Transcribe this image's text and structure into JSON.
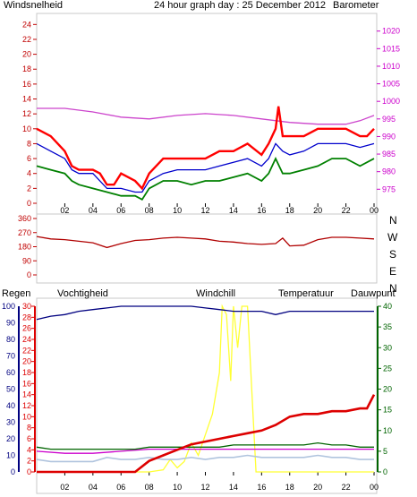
{
  "header": {
    "title": "24 hour graph day : 25 December 2012",
    "left_label": "Windsnelheid",
    "right_label": "Barometer"
  },
  "bottom_header": {
    "regen": "Regen",
    "vochtigheid": "Vochtigheid",
    "windchill": "Windchill",
    "temperatuur": "Temperatuur",
    "dauwpunt": "Dauwpunt"
  },
  "compass": [
    "N",
    "W",
    "S",
    "E",
    "N"
  ],
  "colors": {
    "frame": "#cfcfcf",
    "wind_axis": "#c00000",
    "baro_axis": "#cc00cc",
    "gust": "#ff0000",
    "avg_wind": "#0000cc",
    "wind_min": "#008000",
    "barometer": "#cc44cc",
    "direction": "#b00000",
    "regen": "#dd0000",
    "vochtigheid": "#000080",
    "windchill": "#b0c4de",
    "temperatuur": "#006400",
    "dauwpunt": "#cc00cc",
    "solar": "#ffff33"
  },
  "chart_data": [
    {
      "type": "line",
      "name": "wind_barometer",
      "x_ticks": [
        "02",
        "04",
        "06",
        "08",
        "10",
        "12",
        "14",
        "16",
        "18",
        "20",
        "22",
        "00"
      ],
      "y_left_ticks": [
        "0",
        "2",
        "4",
        "6",
        "8",
        "10",
        "12",
        "14",
        "16",
        "18",
        "20",
        "22",
        "24"
      ],
      "y_left_range": [
        0,
        25
      ],
      "y_right_ticks": [
        "975",
        "980",
        "985",
        "990",
        "995",
        "1000",
        "1005",
        "1010",
        "1015",
        "1020"
      ],
      "y_right_range": [
        971,
        1024
      ],
      "x_range": [
        0,
        24
      ],
      "series": [
        {
          "key": "gust",
          "x": [
            0,
            1,
            2,
            2.5,
            3,
            4,
            4.5,
            5,
            5.5,
            6,
            7,
            7.5,
            8,
            9,
            10,
            11,
            12,
            13,
            14,
            15,
            16,
            16.5,
            17,
            17.2,
            17.5,
            18,
            19,
            20,
            21,
            22,
            23,
            23.5,
            24
          ],
          "y": [
            10,
            9,
            7,
            5,
            4.5,
            4.5,
            4,
            2.5,
            2.5,
            4,
            3,
            2,
            4,
            6,
            6,
            6,
            6,
            7,
            7,
            8,
            6.5,
            8,
            10,
            13,
            9,
            9,
            9,
            10,
            10,
            10,
            9,
            9,
            10
          ]
        },
        {
          "key": "avg_wind",
          "x": [
            0,
            1,
            2,
            2.5,
            3,
            4,
            5,
            6,
            7,
            7.5,
            8,
            9,
            10,
            11,
            12,
            13,
            14,
            15,
            16,
            16.5,
            17,
            17.5,
            18,
            19,
            20,
            21,
            22,
            23,
            24
          ],
          "y": [
            8,
            7,
            6,
            4.5,
            4,
            4,
            2,
            2,
            1.5,
            1.5,
            3,
            4,
            4.5,
            4.5,
            4.5,
            5,
            5.5,
            6,
            5,
            6,
            8,
            7,
            6.5,
            7,
            8,
            8,
            8,
            7.5,
            8
          ]
        },
        {
          "key": "wind_min",
          "x": [
            0,
            1,
            2,
            2.5,
            3,
            4,
            5,
            6,
            7,
            7.5,
            8,
            9,
            10,
            11,
            12,
            13,
            14,
            15,
            16,
            16.5,
            17,
            17.5,
            18,
            19,
            20,
            21,
            22,
            23,
            24
          ],
          "y": [
            5,
            4.5,
            4,
            3,
            2.5,
            2,
            1.5,
            1,
            1,
            0.5,
            2,
            3,
            3,
            2.5,
            3,
            3,
            3.5,
            4,
            3,
            4,
            6,
            4,
            4,
            4.5,
            5,
            6,
            6,
            5,
            6
          ]
        },
        {
          "key": "barometer",
          "x": [
            0,
            2,
            4,
            6,
            8,
            10,
            12,
            14,
            16,
            18,
            20,
            22,
            23,
            24
          ],
          "y": [
            998,
            998,
            997,
            995.5,
            995,
            996,
            996.5,
            996,
            995,
            994,
            993.5,
            993.5,
            994.5,
            996
          ]
        }
      ]
    },
    {
      "type": "line",
      "name": "wind_direction",
      "x_ticks": [
        "02",
        "04",
        "06",
        "08",
        "10",
        "12",
        "14",
        "16",
        "18",
        "20",
        "22",
        "00"
      ],
      "y_ticks": [
        "0",
        "90",
        "180",
        "270",
        "360"
      ],
      "y_range": [
        0,
        360
      ],
      "x_range": [
        0,
        24
      ],
      "series": [
        {
          "key": "direction",
          "x": [
            0,
            1,
            2,
            3,
            4,
            5,
            6,
            7,
            8,
            9,
            10,
            11,
            12,
            13,
            14,
            15,
            16,
            17,
            17.5,
            18,
            19,
            20,
            21,
            22,
            23,
            24
          ],
          "y": [
            245,
            230,
            225,
            215,
            205,
            175,
            200,
            220,
            225,
            235,
            240,
            235,
            230,
            215,
            210,
            200,
            195,
            200,
            235,
            185,
            190,
            225,
            240,
            240,
            235,
            230
          ]
        }
      ]
    },
    {
      "type": "line",
      "name": "rain_humidity_temperature",
      "x_ticks": [
        "02",
        "04",
        "06",
        "08",
        "10",
        "12",
        "14",
        "16",
        "18",
        "20",
        "22",
        "00"
      ],
      "y_left_ticks": [
        "0",
        "2",
        "4",
        "6",
        "8",
        "10",
        "12",
        "14",
        "16",
        "18",
        "20",
        "22",
        "24",
        "26",
        "28",
        "30"
      ],
      "y_left_range": [
        0,
        30
      ],
      "y_humidity_ticks": [
        "0",
        "10",
        "20",
        "30",
        "40",
        "50",
        "60",
        "70",
        "80",
        "90",
        "100"
      ],
      "y_humidity_range": [
        0,
        100
      ],
      "y_right_ticks": [
        "0",
        "5",
        "10",
        "15",
        "20",
        "25",
        "30",
        "35",
        "40"
      ],
      "y_right_range": [
        0,
        40
      ],
      "x_range": [
        0,
        24
      ],
      "series": [
        {
          "key": "vochtigheid",
          "x": [
            0,
            1,
            2,
            3,
            4,
            5,
            6,
            7,
            8,
            9,
            10,
            11,
            12,
            13,
            14,
            15,
            16,
            17,
            18,
            19,
            20,
            21,
            22,
            23,
            24
          ],
          "y": [
            92,
            94,
            95,
            97,
            98,
            99,
            100,
            100,
            100,
            100,
            100,
            100,
            99,
            98,
            97,
            97,
            97,
            95,
            97,
            97,
            97,
            97,
            97,
            97,
            97
          ]
        },
        {
          "key": "regen",
          "x": [
            0,
            7,
            8,
            9,
            10,
            11,
            12,
            13,
            14,
            15,
            16,
            17,
            18,
            19,
            20,
            21,
            22,
            23,
            23.5,
            24
          ],
          "y": [
            0,
            0,
            2,
            3,
            4,
            5,
            5.5,
            6,
            6.5,
            7,
            7.5,
            8.5,
            10,
            10.5,
            10.5,
            11,
            11,
            11.5,
            11.5,
            14
          ]
        },
        {
          "key": "temperatuur",
          "x": [
            0,
            1,
            2,
            3,
            4,
            5,
            6,
            7,
            8,
            9,
            10,
            11,
            12,
            13,
            14,
            15,
            16,
            17,
            18,
            19,
            20,
            21,
            22,
            23,
            24
          ],
          "y": [
            6,
            5.5,
            5.5,
            5.5,
            5.5,
            5.5,
            5.5,
            5.5,
            6,
            6,
            6,
            6,
            6,
            6,
            6.5,
            6.5,
            6.5,
            6.5,
            6.5,
            6.5,
            7,
            6.5,
            6.5,
            6,
            6
          ]
        },
        {
          "key": "dauwpunt",
          "x": [
            0,
            2,
            4,
            6,
            8,
            10,
            12,
            14,
            16,
            18,
            20,
            22,
            24
          ],
          "y": [
            5,
            4.5,
            4.5,
            5,
            5.5,
            5.5,
            5.5,
            5.5,
            5.5,
            5.5,
            5.5,
            5.5,
            5.5
          ]
        },
        {
          "key": "windchill",
          "x": [
            0,
            1,
            2,
            3,
            4,
            5,
            6,
            7,
            8,
            9,
            10,
            11,
            12,
            13,
            14,
            15,
            16,
            17,
            18,
            19,
            20,
            21,
            22,
            23,
            24
          ],
          "y": [
            3,
            2.5,
            2.5,
            2.5,
            2.5,
            3.5,
            3,
            3,
            3.5,
            3,
            3,
            3.5,
            3,
            3.5,
            3.5,
            4,
            3.5,
            3.5,
            3.5,
            3.5,
            4,
            3.5,
            3.5,
            3,
            3
          ]
        },
        {
          "key": "solar",
          "x": [
            0,
            7,
            8,
            9,
            9.5,
            10,
            10.5,
            11,
            11.5,
            12,
            12.5,
            13,
            13.2,
            13.5,
            13.8,
            14,
            14.3,
            14.6,
            15,
            15.3,
            15.6,
            16,
            24
          ],
          "y": [
            0,
            0,
            0,
            0.5,
            3,
            1,
            2.5,
            7,
            4,
            9,
            14,
            24,
            40,
            38,
            22,
            40,
            30,
            40,
            40,
            20,
            0,
            0,
            0
          ]
        }
      ]
    }
  ]
}
